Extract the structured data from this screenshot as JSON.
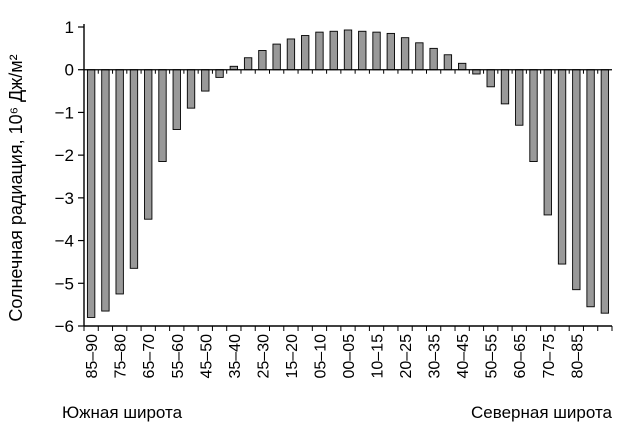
{
  "chart_data": {
    "type": "bar",
    "ylabel": "Солнечная радиация, 10⁶ Дж/м²",
    "ylim": [
      -6,
      1
    ],
    "yticks": [
      1,
      0,
      -1,
      -2,
      -3,
      -4,
      -5,
      -6
    ],
    "grid": false,
    "bar_color": "#999999",
    "tick_labels": [
      "85–90",
      "75–80",
      "65–70",
      "55–60",
      "45–50",
      "35–40",
      "25–30",
      "15–20",
      "05–10",
      "00–05",
      "10–15",
      "20–25",
      "30–35",
      "40–45",
      "50–55",
      "60–65",
      "70–75",
      "80–85"
    ],
    "values": [
      -5.8,
      -5.65,
      -5.25,
      -4.65,
      -3.5,
      -2.15,
      -1.4,
      -0.9,
      -0.5,
      -0.18,
      0.08,
      0.28,
      0.45,
      0.6,
      0.72,
      0.8,
      0.88,
      0.9,
      0.93,
      0.9,
      0.88,
      0.85,
      0.75,
      0.63,
      0.5,
      0.35,
      0.15,
      -0.1,
      -0.4,
      -0.8,
      -1.3,
      -2.15,
      -3.4,
      -4.55,
      -5.15,
      -5.55,
      -5.7
    ]
  },
  "labels": {
    "south": "Южная широта",
    "north": "Северная широта"
  }
}
